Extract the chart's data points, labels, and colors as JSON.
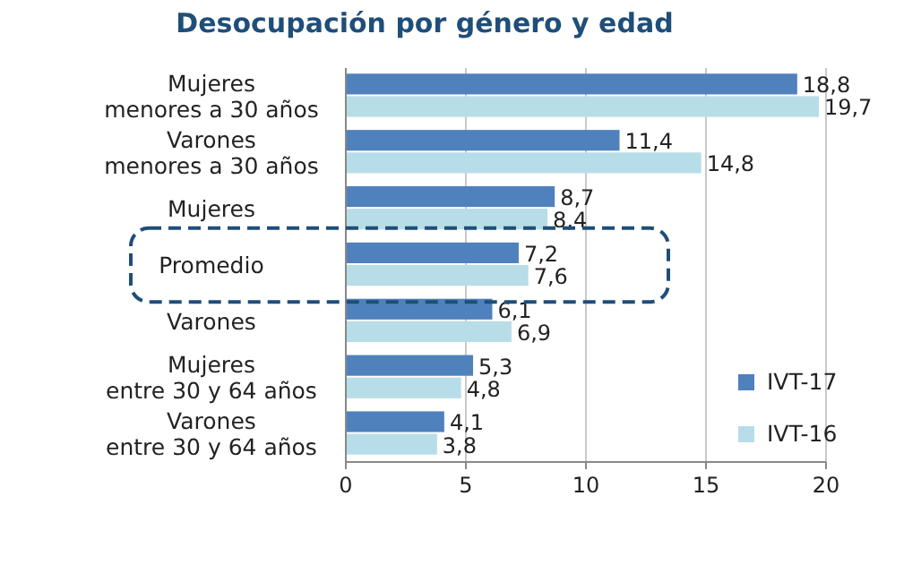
{
  "chart_data": {
    "type": "bar",
    "orientation": "horizontal",
    "title": "Desocupación por género y edad",
    "categories": [
      "Mujeres\nmenores a 30 años",
      "Varones\nmenores a 30 años",
      "Mujeres",
      "Promedio",
      "Varones",
      "Mujeres\nentre 30 y 64 años",
      "Varones\nentre 30 y 64 años"
    ],
    "series": [
      {
        "name": "IVT-17",
        "color": "#4f81bd",
        "values": [
          18.8,
          11.4,
          8.7,
          7.2,
          6.1,
          5.3,
          4.1
        ],
        "value_labels": [
          "18,8",
          "11,4",
          "8,7",
          "7,2",
          "6,1",
          "5,3",
          "4,1"
        ]
      },
      {
        "name": "IVT-16",
        "color": "#b7dde8",
        "values": [
          19.7,
          14.8,
          8.4,
          7.6,
          6.9,
          4.8,
          3.8
        ],
        "value_labels": [
          "19,7",
          "14,8",
          "8,4",
          "7,6",
          "6,9",
          "4,8",
          "3,8"
        ]
      }
    ],
    "xlim": [
      0,
      20
    ],
    "xticks": [
      0,
      5,
      10,
      15,
      20
    ],
    "grid": "x",
    "legend": "bottom right"
  }
}
